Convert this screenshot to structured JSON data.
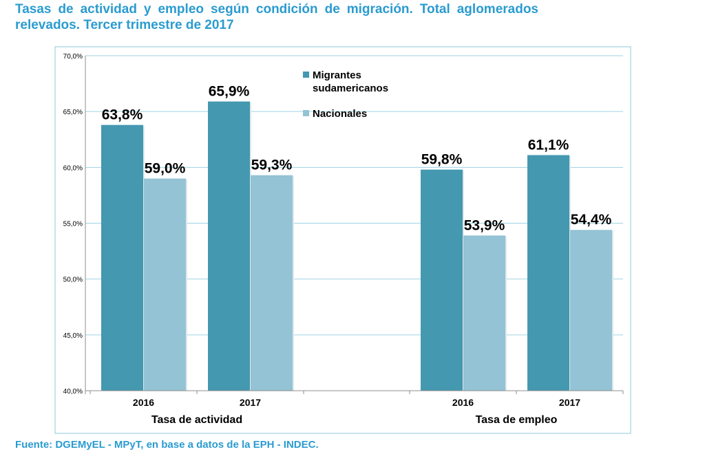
{
  "title": "Tasas de actividad y empleo según condición de migración. Total aglomerados relevados. Tercer trimestre de 2017",
  "source": "Fuente: DGEMyEL - MPyT, en base a datos de la EPH - INDEC.",
  "colors": {
    "migrantes": "#4498b0",
    "nacionales": "#93c3d4",
    "frame": "#9fd3e0",
    "grid": "#9fd3e0",
    "title": "#2a9bd0"
  },
  "chart_data": {
    "type": "bar",
    "groups": [
      "Tasa de actividad",
      "Tasa de empleo"
    ],
    "categories": [
      "2016",
      "2017",
      "2016",
      "2017"
    ],
    "series": [
      {
        "name": "Migrantes sudamericanos",
        "values": [
          63.8,
          65.9,
          59.8,
          61.1
        ],
        "labels": [
          "63,8%",
          "65,9%",
          "59,8%",
          "61,1%"
        ]
      },
      {
        "name": "Nacionales",
        "values": [
          59.0,
          59.3,
          53.9,
          54.4
        ],
        "labels": [
          "59,0%",
          "59,3%",
          "53,9%",
          "54,4%"
        ]
      }
    ],
    "ylim": [
      40,
      70
    ],
    "yticks": [
      40,
      45,
      50,
      55,
      60,
      65,
      70
    ],
    "ytick_labels": [
      "40,0%",
      "45,0%",
      "50,0%",
      "55,0%",
      "60,0%",
      "65,0%",
      "70,0%"
    ],
    "legend": [
      "Migrantes",
      "sudamericanos",
      "Nacionales"
    ],
    "legend_position": "top-center",
    "grid": true
  }
}
